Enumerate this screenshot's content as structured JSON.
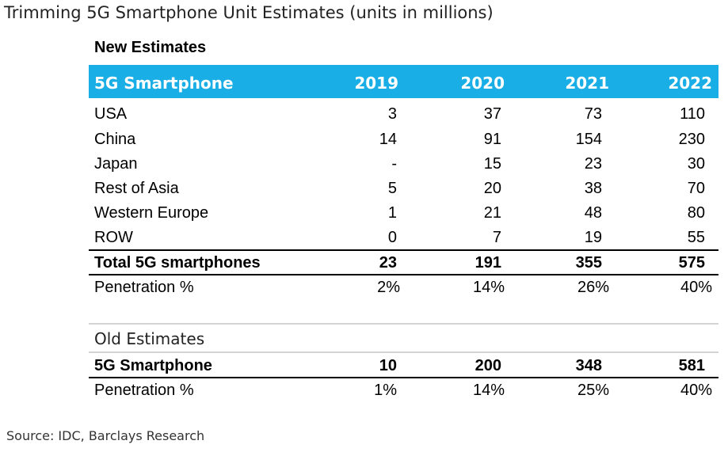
{
  "title": "Trimming 5G Smartphone Unit Estimates (units in millions)",
  "new_estimates": {
    "label": "New Estimates",
    "header": {
      "label": "5G Smartphone",
      "years": [
        "2019",
        "2020",
        "2021",
        "2022"
      ]
    },
    "rows": [
      {
        "name": "USA",
        "values": [
          "3",
          "37",
          "73",
          "110"
        ]
      },
      {
        "name": "China",
        "values": [
          "14",
          "91",
          "154",
          "230"
        ]
      },
      {
        "name": "Japan",
        "values": [
          "-",
          "15",
          "23",
          "30"
        ]
      },
      {
        "name": "Rest of Asia",
        "values": [
          "5",
          "20",
          "38",
          "70"
        ]
      },
      {
        "name": "Western Europe",
        "values": [
          "1",
          "21",
          "48",
          "80"
        ]
      },
      {
        "name": "ROW",
        "values": [
          "0",
          "7",
          "19",
          "55"
        ]
      }
    ],
    "total": {
      "name": "Total 5G smartphones",
      "values": [
        "23",
        "191",
        "355",
        "575"
      ]
    },
    "penetration": {
      "name": "Penetration %",
      "values": [
        "2%",
        "14%",
        "26%",
        "40%"
      ]
    }
  },
  "old_estimates": {
    "label": "Old Estimates",
    "total": {
      "name": "5G Smartphone",
      "values": [
        "10",
        "200",
        "348",
        "581"
      ]
    },
    "penetration": {
      "name": "Penetration %",
      "values": [
        "1%",
        "14%",
        "25%",
        "40%"
      ]
    }
  },
  "source": "Source: IDC, Barclays Research",
  "colors": {
    "header_band": "#1aaee6",
    "header_text": "#ffffff",
    "rules": "#000000",
    "section_divider": "#d4d4d4"
  }
}
